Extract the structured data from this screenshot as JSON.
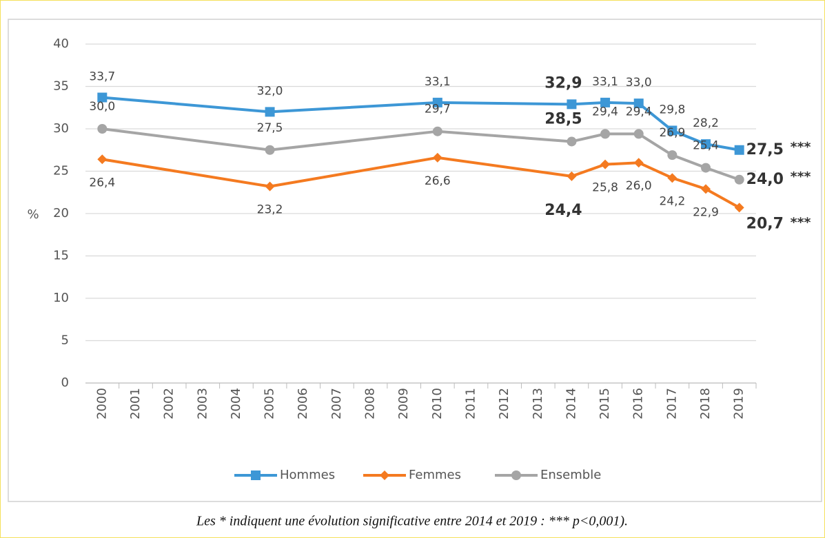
{
  "chart_data": {
    "type": "line",
    "y_label": "%",
    "x": [
      2000,
      2005,
      2010,
      2014,
      2015,
      2016,
      2017,
      2018,
      2019
    ],
    "xlim": [
      1999.5,
      2019.5
    ],
    "xticks": [
      2000,
      2001,
      2002,
      2003,
      2004,
      2005,
      2006,
      2007,
      2008,
      2009,
      2010,
      2011,
      2012,
      2013,
      2014,
      2015,
      2016,
      2017,
      2018,
      2019
    ],
    "ylim": [
      0,
      40
    ],
    "yticks": [
      0,
      5,
      10,
      15,
      20,
      25,
      30,
      35,
      40
    ],
    "grid": true,
    "legend": "bottom",
    "series": [
      {
        "name": "Hommes",
        "color": "#3d97d6",
        "marker": "square",
        "values": [
          33.7,
          32.0,
          33.1,
          32.9,
          33.1,
          33.0,
          29.8,
          28.2,
          27.5
        ],
        "value_labels": [
          "33,7",
          "32,0",
          "33,1",
          "32,9",
          "33,1",
          "33,0",
          "29,8",
          "28,2",
          "27,5"
        ],
        "significance": "***"
      },
      {
        "name": "Femmes",
        "color": "#f47a20",
        "marker": "diamond",
        "values": [
          26.4,
          23.2,
          26.6,
          24.4,
          25.8,
          26.0,
          24.2,
          22.9,
          20.7
        ],
        "value_labels": [
          "26,4",
          "23,2",
          "26,6",
          "24,4",
          "25,8",
          "26,0",
          "24,2",
          "22,9",
          "20,7"
        ],
        "significance": "***"
      },
      {
        "name": "Ensemble",
        "color": "#a5a5a5",
        "marker": "circle",
        "values": [
          30.0,
          27.5,
          29.7,
          28.5,
          29.4,
          29.4,
          26.9,
          25.4,
          24.0
        ],
        "value_labels": [
          "30,0",
          "27,5",
          "29,7",
          "28,5",
          "29,4",
          "29,4",
          "26,9",
          "25,4",
          "24,0"
        ],
        "significance": "***"
      }
    ],
    "footnote": "Les * indiquent une évolution significative entre 2014 et 2019 : *** p<0,001)."
  }
}
